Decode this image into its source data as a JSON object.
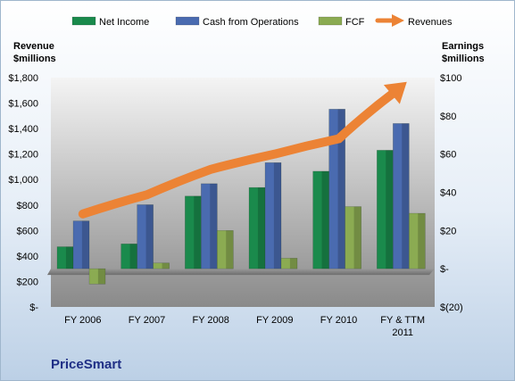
{
  "chart_data": {
    "type": "bar",
    "title": "",
    "company": "PriceSmart",
    "categories": [
      "FY 2006",
      "FY 2007",
      "FY 2008",
      "FY 2009",
      "FY 2010",
      "FY & TTM 2011"
    ],
    "category_lines": [
      [
        "FY 2006"
      ],
      [
        "FY 2007"
      ],
      [
        "FY 2008"
      ],
      [
        "FY 2009"
      ],
      [
        "FY 2010"
      ],
      [
        "FY & TTM",
        "2011"
      ]
    ],
    "left_axis": {
      "label_lines": [
        "Revenue",
        "$millions"
      ],
      "ylim": [
        0,
        1800
      ],
      "ticks": [
        0,
        200,
        400,
        600,
        800,
        1000,
        1200,
        1400,
        1600,
        1800
      ],
      "tick_labels": [
        "$-",
        "$200",
        "$400",
        "$600",
        "$800",
        "$1,000",
        "$1,200",
        "$1,400",
        "$1,600",
        "$1,800"
      ]
    },
    "right_axis": {
      "label_lines": [
        "Earnings",
        "$millions"
      ],
      "ylim": [
        -20,
        100
      ],
      "ticks": [
        -20,
        0,
        20,
        40,
        60,
        80,
        100
      ],
      "tick_labels": [
        "$(20)",
        "$-",
        "$20",
        "$40",
        "$60",
        "$80",
        "$100"
      ]
    },
    "series": [
      {
        "name": "Net Income",
        "kind": "bar",
        "axis": "right",
        "color": "#1a8a4c",
        "values": [
          11.5,
          13,
          38,
          42.5,
          51,
          62
        ]
      },
      {
        "name": "Cash from Operations",
        "kind": "bar",
        "axis": "right",
        "color": "#4a6bb0",
        "values": [
          25,
          33.5,
          44.5,
          55.5,
          83.5,
          76
        ]
      },
      {
        "name": "FCF",
        "kind": "bar",
        "axis": "right",
        "color": "#8bab52",
        "values": [
          -8,
          3,
          20,
          5.5,
          32.5,
          29
        ]
      },
      {
        "name": "Revenues",
        "kind": "arrow",
        "axis": "left",
        "color": "#ec8335",
        "values": [
          730,
          880,
          1080,
          1200,
          1320,
          1740
        ]
      }
    ],
    "legend_position": "top",
    "grid": false
  }
}
